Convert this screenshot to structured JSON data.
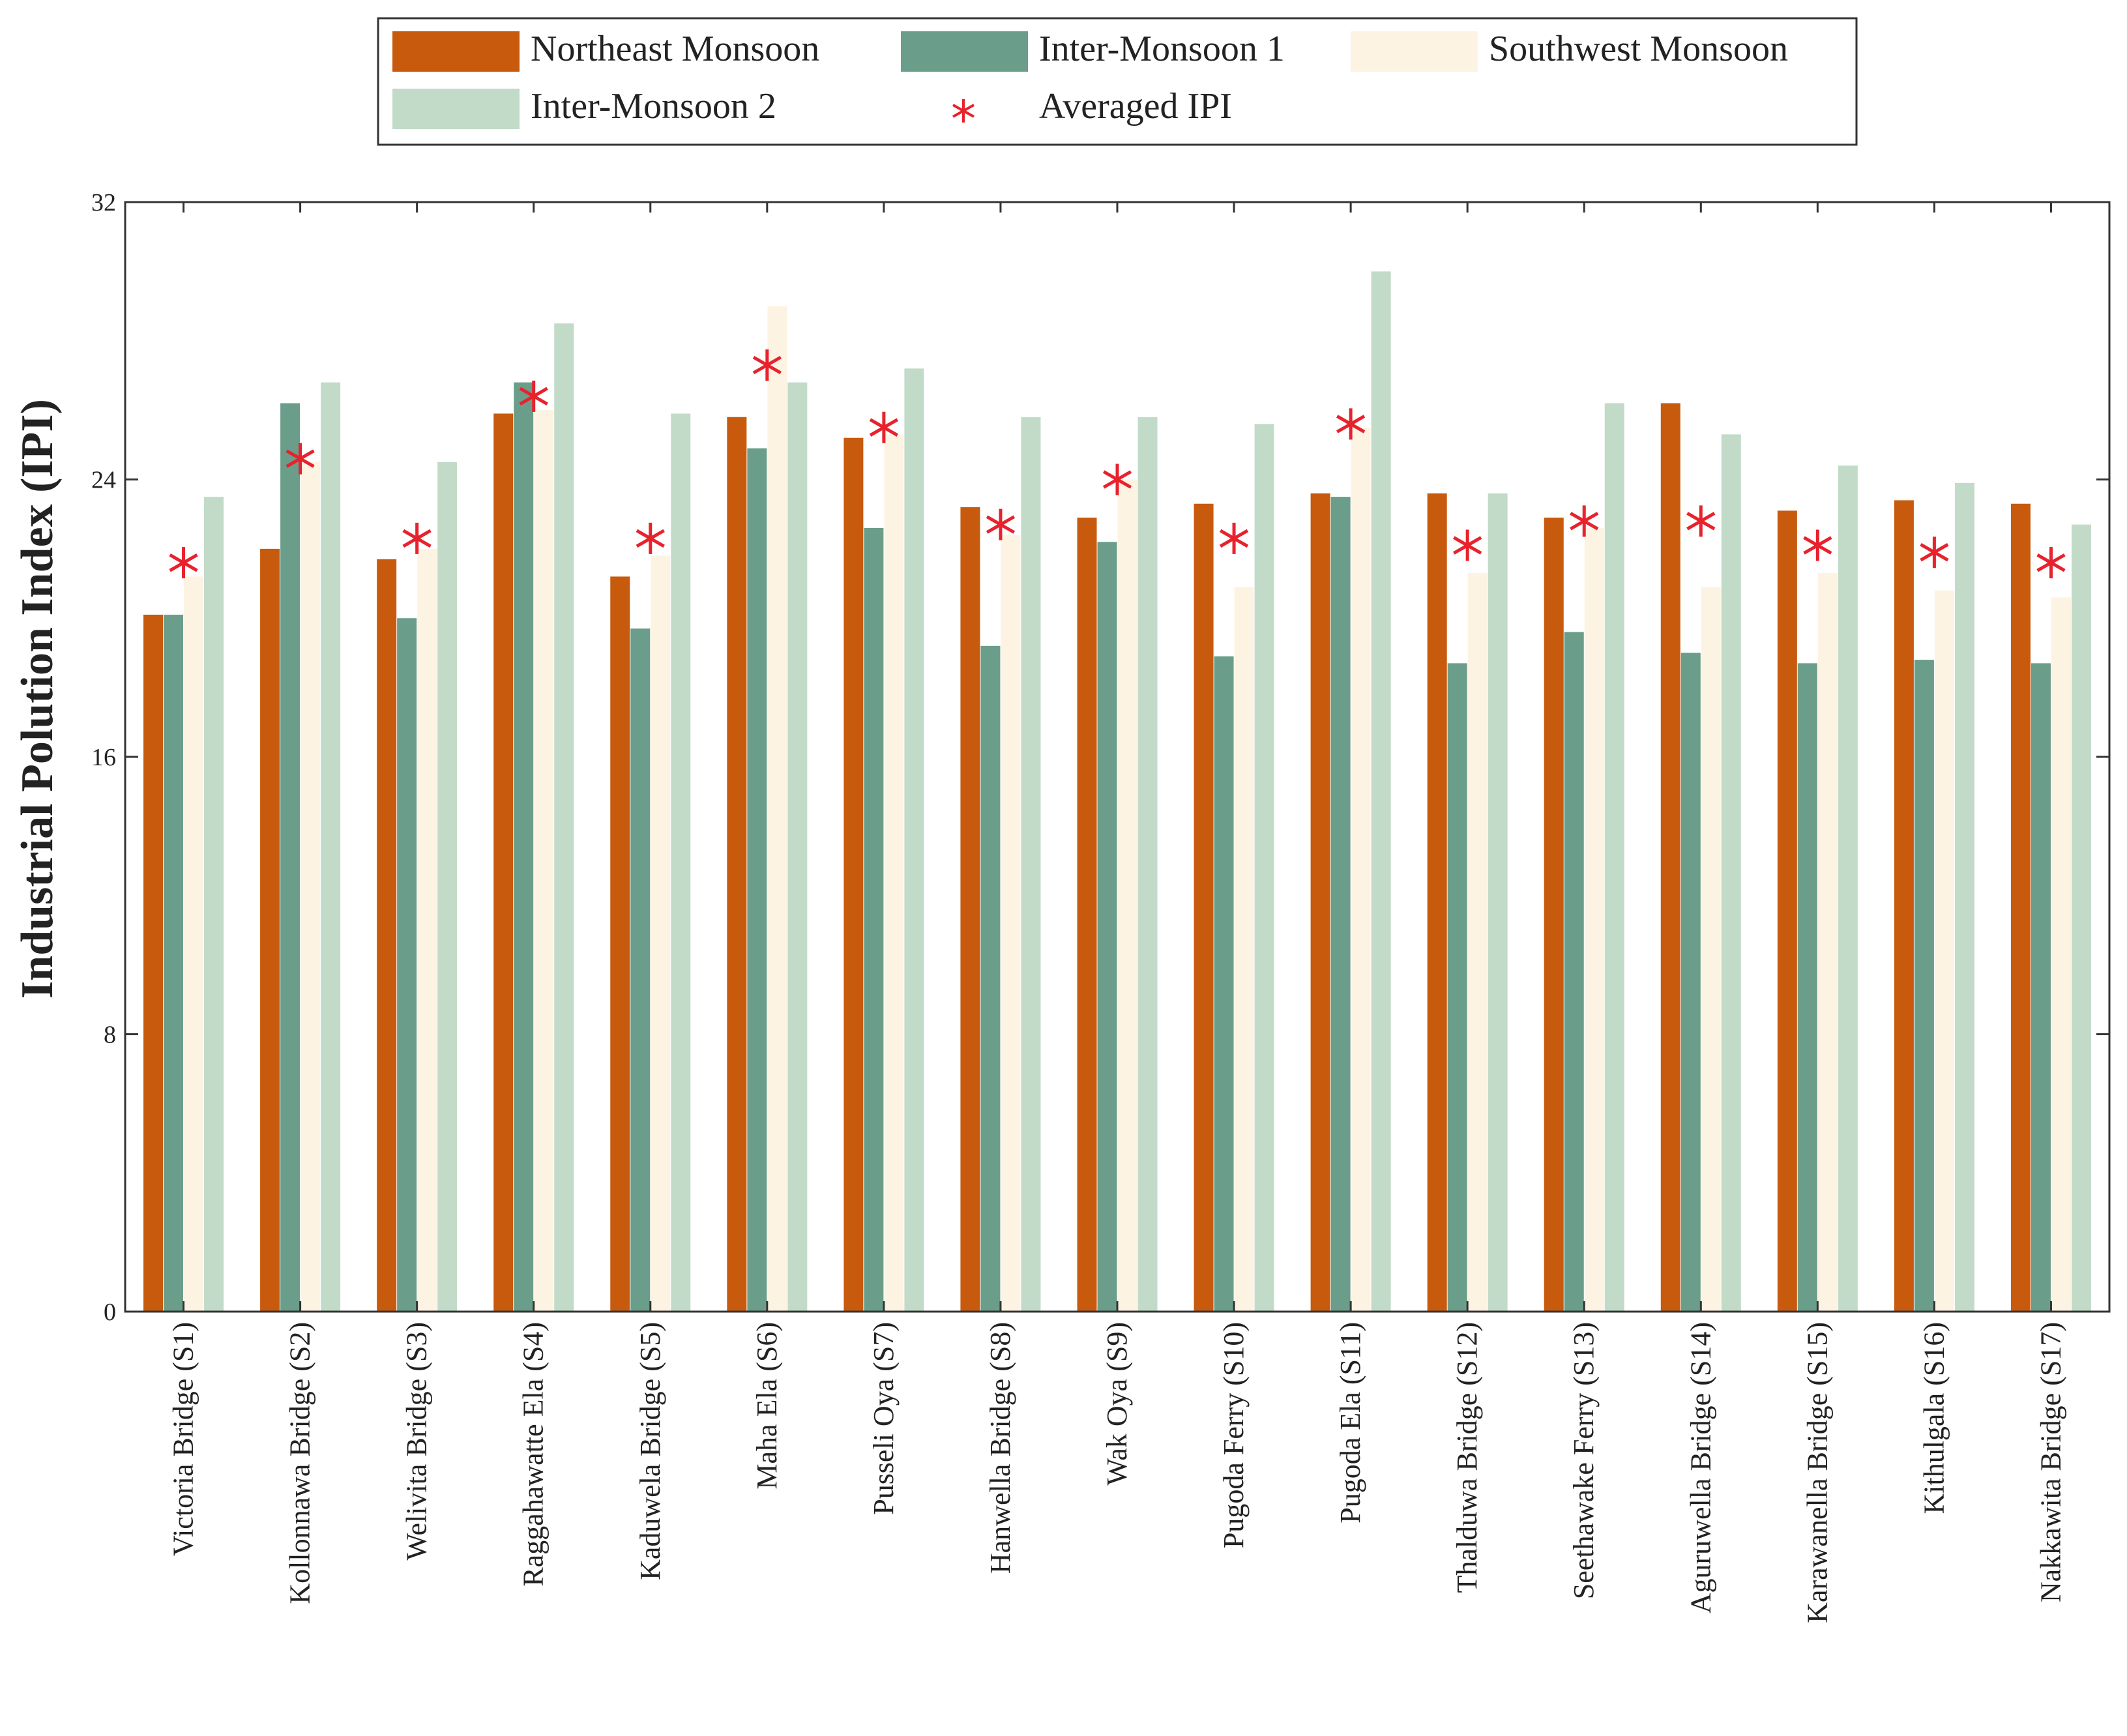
{
  "chart_data": {
    "type": "bar",
    "title": "",
    "xlabel": "",
    "ylabel": "Industrial Polution Index (IPI)",
    "ylim": [
      0,
      32
    ],
    "yticks": [
      0,
      8,
      16,
      24,
      32
    ],
    "categories": [
      "Victoria Bridge (S1)",
      "Kollonnawa Bridge  (S2)",
      "Welivita Bridge (S3)",
      "Raggahawatte Ela  (S4)",
      "Kaduwela Bridge  (S5)",
      "Maha Ela (S6)",
      "Pusseli Oya (S7)",
      "Hanwella Bridge  (S8)",
      "Wak Oya (S9)",
      "Pugoda Ferry (S10)",
      "Pugoda Ela (S11)",
      "Thalduwa Bridge (S12)",
      "Seethawake Ferry (S13)",
      "Aguruwella Bridge (S14)",
      "Karawanella Bridge (S15)",
      "Kithulgala (S16)",
      "Nakkawita Bridge (S17)"
    ],
    "series": [
      {
        "name": "Northeast Monsoon",
        "color": "#c85a0e",
        "values": [
          20.1,
          22.0,
          21.7,
          25.9,
          21.2,
          25.8,
          25.2,
          23.2,
          22.9,
          23.3,
          23.6,
          23.6,
          22.9,
          26.2,
          23.1,
          23.4,
          23.3
        ]
      },
      {
        "name": "Inter-Monsoon 1",
        "color": "#6b9e8a",
        "values": [
          20.1,
          26.2,
          20.0,
          26.8,
          19.7,
          24.9,
          22.6,
          19.2,
          22.2,
          18.9,
          23.5,
          18.7,
          19.6,
          19.0,
          18.7,
          18.8,
          18.7
        ]
      },
      {
        "name": "Southwest Monsoon",
        "color": "#fdf3e3",
        "values": [
          21.2,
          24.5,
          22.0,
          26.0,
          21.8,
          29.0,
          25.3,
          22.4,
          24.0,
          20.9,
          25.5,
          21.3,
          22.6,
          20.9,
          21.3,
          20.8,
          20.6
        ]
      },
      {
        "name": "Inter-Monsoon 2",
        "color": "#c2dbc9",
        "values": [
          23.5,
          26.8,
          24.5,
          28.5,
          25.9,
          26.8,
          27.2,
          25.8,
          25.8,
          25.6,
          30.0,
          23.6,
          26.2,
          25.3,
          24.4,
          23.9,
          22.7
        ]
      }
    ],
    "markers": {
      "name": "Averaged IPI",
      "color": "#e8222d",
      "values": [
        21.6,
        24.6,
        22.3,
        26.4,
        22.3,
        27.3,
        25.5,
        22.7,
        24.0,
        22.3,
        25.6,
        22.1,
        22.8,
        22.8,
        22.1,
        21.9,
        21.6
      ]
    },
    "legend_position": "top-center"
  }
}
